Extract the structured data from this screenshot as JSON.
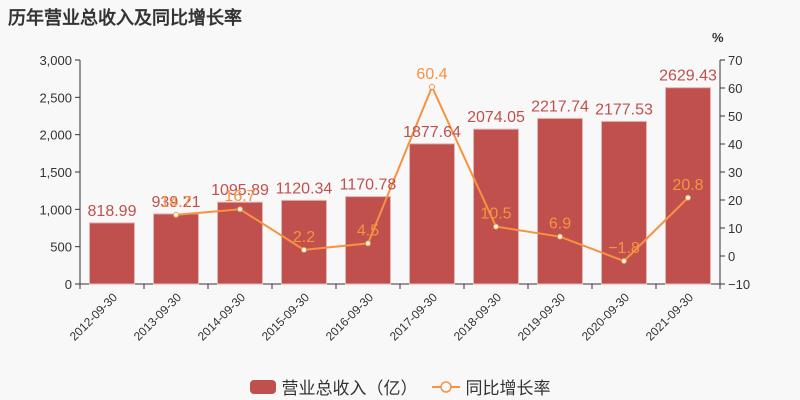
{
  "title": "历年营业总收入及同比增长率",
  "right_axis_unit": "%",
  "legend": {
    "bar_label": "营业总收入（亿）",
    "line_label": "同比增长率"
  },
  "colors": {
    "bar": "#c0504d",
    "line": "#f59342",
    "axis": "#333333",
    "bar_label": "#c0504d",
    "line_label": "#f59342"
  },
  "chart_data": {
    "type": "bar+line",
    "title": "历年营业总收入及同比增长率",
    "categories": [
      "2012-09-30",
      "2013-09-30",
      "2014-09-30",
      "2015-09-30",
      "2016-09-30",
      "2017-09-30",
      "2018-09-30",
      "2019-09-30",
      "2020-09-30",
      "2021-09-30"
    ],
    "series": [
      {
        "name": "营业总收入（亿）",
        "type": "bar",
        "axis": "left",
        "values": [
          818.99,
          939.21,
          1095.89,
          1120.34,
          1170.78,
          1877.64,
          2074.05,
          2217.74,
          2177.53,
          2629.43
        ]
      },
      {
        "name": "同比增长率",
        "type": "line",
        "axis": "right",
        "values": [
          null,
          14.7,
          16.7,
          2.2,
          4.5,
          60.4,
          10.5,
          6.9,
          -1.8,
          20.8
        ]
      }
    ],
    "left_axis": {
      "ylim": [
        0,
        3000
      ],
      "ticks": [
        "0",
        "500",
        "1,000",
        "1,500",
        "2,000",
        "2,500",
        "3,000"
      ]
    },
    "right_axis": {
      "ylim": [
        -10,
        70
      ],
      "ticks": [
        "−10",
        "0",
        "10",
        "20",
        "30",
        "40",
        "50",
        "60",
        "70"
      ],
      "unit": "%"
    },
    "grid": false,
    "legend_position": "bottom"
  }
}
